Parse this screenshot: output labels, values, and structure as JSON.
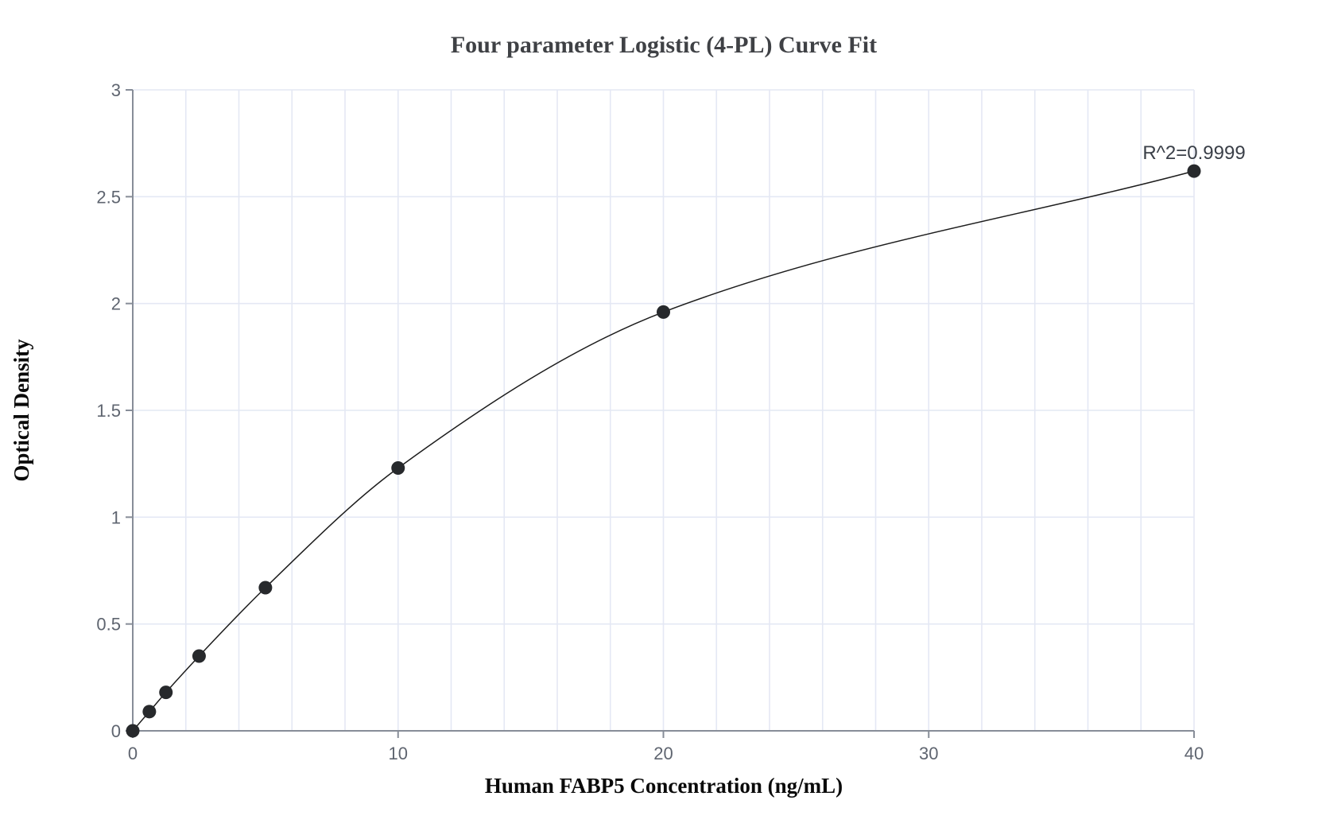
{
  "chart_data": {
    "type": "scatter",
    "title": "Four parameter Logistic (4-PL) Curve Fit",
    "xlabel": "Human FABP5 Concentration (ng/mL)",
    "ylabel": "Optical Density",
    "annotation": "R^2=0.9999",
    "x": [
      0,
      0.625,
      1.25,
      2.5,
      5,
      10,
      20,
      40
    ],
    "y": [
      0,
      0.09,
      0.18,
      0.35,
      0.67,
      1.23,
      1.96,
      2.62
    ],
    "fit_curve": "four-parameter-logistic smooth curve through all points, from x=0 to x=40",
    "xlim": [
      0,
      40
    ],
    "ylim": [
      0,
      3
    ],
    "x_ticks": [
      0,
      10,
      20,
      30,
      40
    ],
    "y_ticks": [
      0,
      0.5,
      1,
      1.5,
      2,
      2.5,
      3
    ],
    "x_gridline_step": 2,
    "y_gridline_step": 0.5,
    "grid": true,
    "legend": "none",
    "marker_radius_px": 8.5,
    "colors": {
      "background": "#ffffff",
      "grid": "#e4e8f4",
      "axis": "#878d98",
      "tick_label": "#5f6570",
      "title": "#3f4145",
      "axis_title": "#0a0a0a",
      "annotation": "#3a3f48",
      "marker": "#27292c",
      "curve": "#1c1c1c"
    }
  }
}
